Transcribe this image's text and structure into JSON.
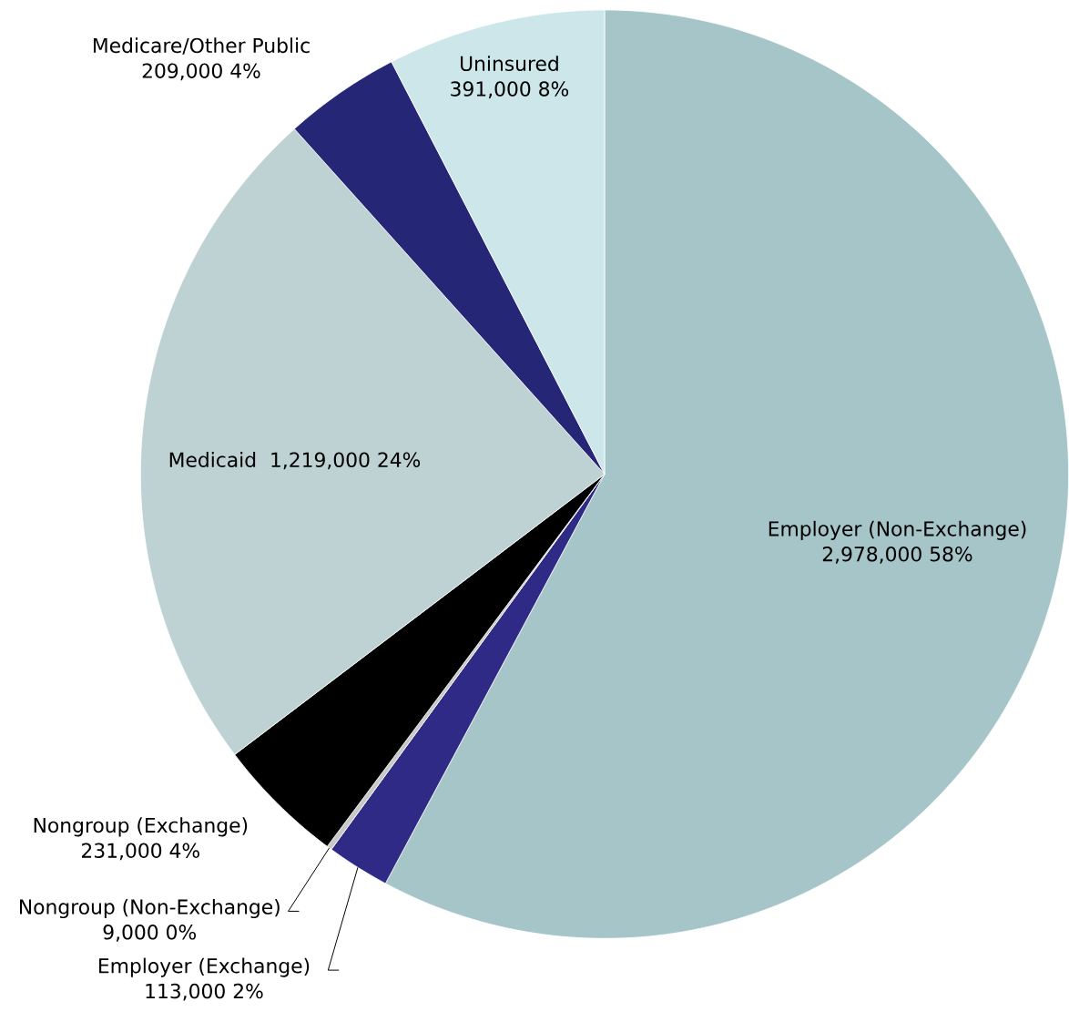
{
  "chart_data": {
    "type": "pie",
    "categories": [
      "Employer (Non-Exchange)",
      "Employer (Exchange)",
      "Nongroup (Non-Exchange)",
      "Nongroup (Exchange)",
      "Medicaid",
      "Medicare/Other Public",
      "Uninsured"
    ],
    "values": [
      2978000,
      113000,
      9000,
      231000,
      1219000,
      209000,
      391000
    ],
    "value_labels": [
      "2,978,000 58%",
      "113,000 2%",
      "9,000 0%",
      "231,000 4%",
      "1,219,000 24%",
      "209,000 4%",
      "391,000 8%"
    ],
    "colors": [
      "#a5c5c8",
      "#2e2a85",
      "#c8c8c8",
      "#000000",
      "#bed2d4",
      "#262676",
      "#cde6ea"
    ]
  }
}
